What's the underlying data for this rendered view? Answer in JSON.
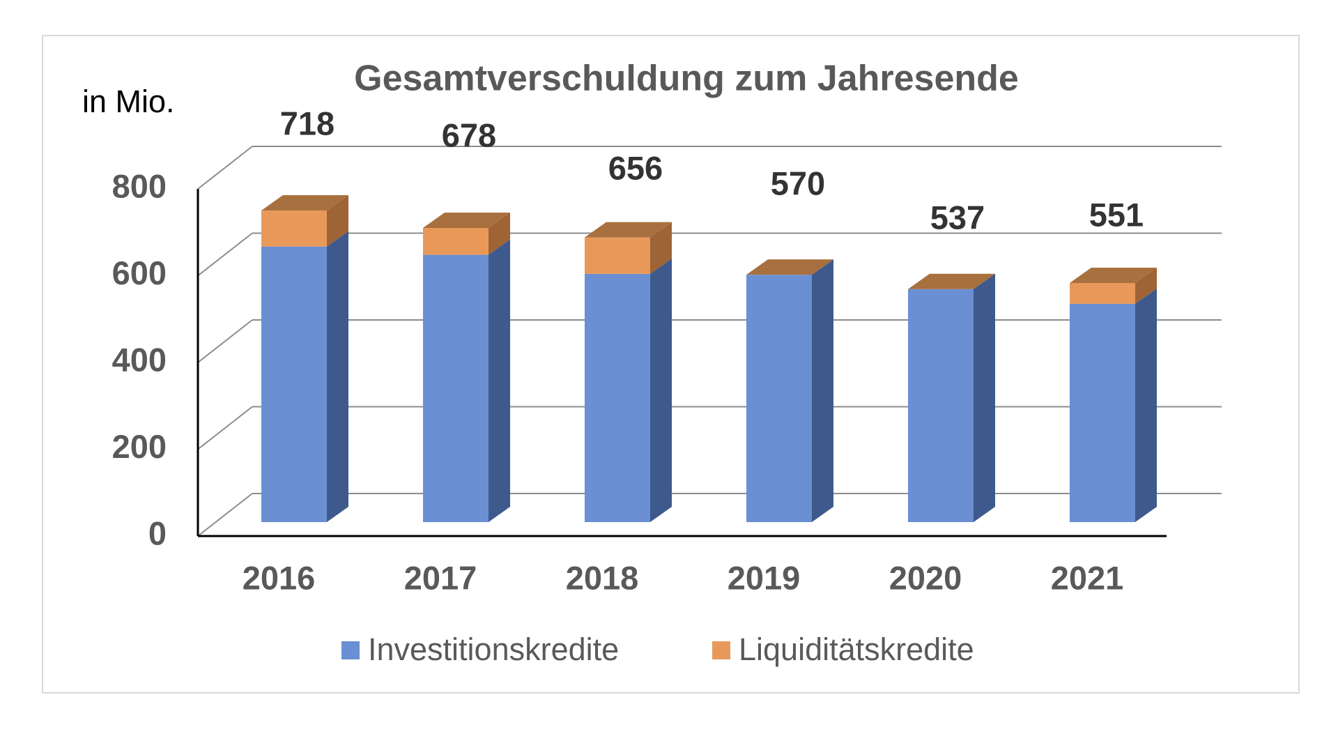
{
  "chart_data": {
    "type": "bar3d_stacked",
    "title": "Gesamtverschuldung zum Jahresende",
    "y_label": "in Mio.",
    "categories": [
      "2016",
      "2017",
      "2018",
      "2019",
      "2020",
      "2021"
    ],
    "series": [
      {
        "name": "Investitionskredite",
        "color": "#6a8fd3",
        "values": [
          635,
          616,
          572,
          570,
          537,
          503
        ]
      },
      {
        "name": "Liquiditätskredite",
        "color": "#e8995a",
        "values": [
          83,
          62,
          84,
          0,
          0,
          48
        ]
      }
    ],
    "totals": [
      718,
      678,
      656,
      570,
      537,
      551
    ],
    "ylim": [
      0,
      800
    ],
    "yticks": [
      0,
      200,
      400,
      600,
      800
    ],
    "grid": true
  }
}
